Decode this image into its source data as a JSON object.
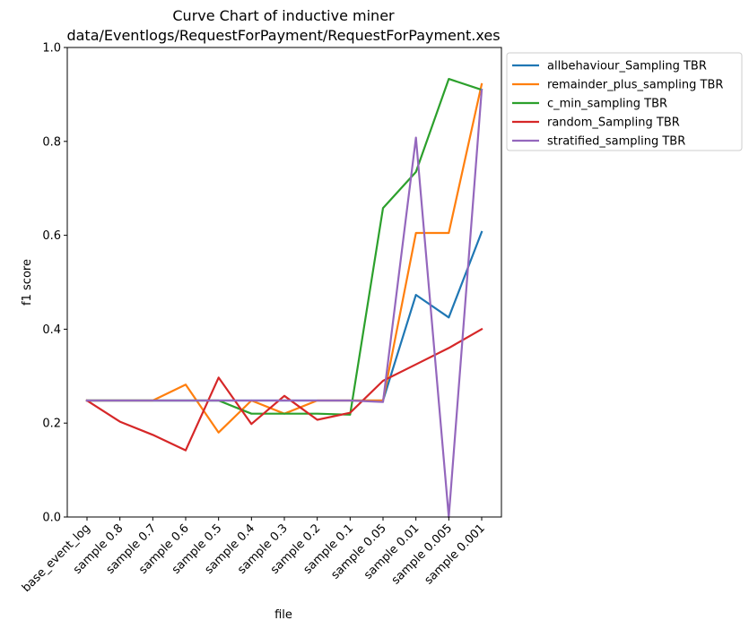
{
  "chart_data": {
    "type": "line",
    "title": [
      "Curve Chart of inductive miner",
      "data/Eventlogs/RequestForPayment/RequestForPayment.xes"
    ],
    "xlabel": "file",
    "ylabel": "f1 score",
    "ylim": [
      0,
      1.0
    ],
    "yticks": [
      "0.0",
      "0.2",
      "0.4",
      "0.6",
      "0.8",
      "1.0"
    ],
    "ytick_values": [
      0,
      0.2,
      0.4,
      0.6,
      0.8,
      1.0
    ],
    "categories": [
      "base_event_log",
      "sample 0.8",
      "sample 0.7",
      "sample 0.6",
      "sample 0.5",
      "sample 0.4",
      "sample 0.3",
      "sample 0.2",
      "sample 0.1",
      "sample 0.05",
      "sample 0.01",
      "sample 0.005",
      "sample 0.001"
    ],
    "grid": false,
    "legend_position": "outside-top-right",
    "series": [
      {
        "name": "allbehaviour_Sampling TBR",
        "color": "#1f77b4",
        "values": [
          0.248,
          0.248,
          0.248,
          0.248,
          0.248,
          0.248,
          0.248,
          0.248,
          0.248,
          0.248,
          0.473,
          0.425,
          0.607
        ]
      },
      {
        "name": "remainder_plus_sampling TBR",
        "color": "#ff7f0e",
        "values": [
          0.248,
          0.248,
          0.248,
          0.282,
          0.18,
          0.248,
          0.22,
          0.248,
          0.248,
          0.248,
          0.605,
          0.605,
          0.922
        ]
      },
      {
        "name": "c_min_sampling TBR",
        "color": "#2ca02c",
        "values": [
          0.248,
          0.248,
          0.248,
          0.248,
          0.248,
          0.22,
          0.22,
          0.22,
          0.218,
          0.658,
          0.735,
          0.933,
          0.91
        ]
      },
      {
        "name": "random_Sampling TBR",
        "color": "#d62728",
        "values": [
          0.248,
          0.203,
          0.175,
          0.142,
          0.297,
          0.198,
          0.258,
          0.207,
          0.222,
          0.29,
          0.325,
          0.36,
          0.4
        ]
      },
      {
        "name": "stratified_sampling TBR",
        "color": "#9467bd",
        "values": [
          0.248,
          0.248,
          0.248,
          0.248,
          0.248,
          0.248,
          0.248,
          0.248,
          0.248,
          0.245,
          0.808,
          0.0,
          0.91
        ]
      }
    ]
  }
}
